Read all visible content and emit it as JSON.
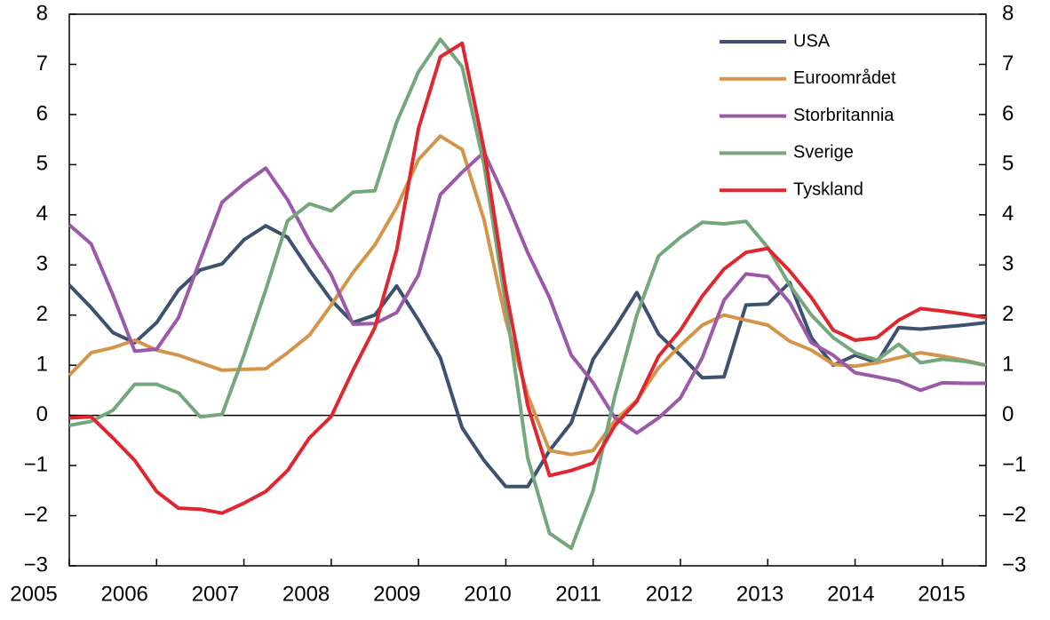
{
  "chart_data": {
    "type": "line",
    "x": [
      2005,
      2005.25,
      2005.5,
      2005.75,
      2006,
      2006.25,
      2006.5,
      2006.75,
      2007,
      2007.25,
      2007.5,
      2007.75,
      2008,
      2008.25,
      2008.5,
      2008.75,
      2009,
      2009.25,
      2009.5,
      2009.75,
      2010,
      2010.25,
      2010.5,
      2010.75,
      2011,
      2011.25,
      2011.5,
      2011.75,
      2012,
      2012.25,
      2012.5,
      2012.75,
      2013,
      2013.25,
      2013.5,
      2013.75,
      2014,
      2014.25,
      2014.5,
      2014.75,
      2015,
      2015.25,
      2015.5
    ],
    "series": [
      {
        "name": "USA",
        "color": "#3d5170",
        "values": [
          2.6,
          2.15,
          1.65,
          1.45,
          1.85,
          2.5,
          2.9,
          3.02,
          3.5,
          3.78,
          3.55,
          2.9,
          2.3,
          1.85,
          2.0,
          2.58,
          1.9,
          1.15,
          -0.25,
          -0.9,
          -1.42,
          -1.42,
          -0.7,
          -0.15,
          1.12,
          1.75,
          2.45,
          1.62,
          1.2,
          0.75,
          0.77,
          2.2,
          2.22,
          2.65,
          1.55,
          1.0,
          1.2,
          1.05,
          1.75,
          1.72,
          1.76,
          1.8,
          1.85
        ]
      },
      {
        "name": "Euroområdet",
        "color": "#d4954a",
        "values": [
          0.8,
          1.25,
          1.35,
          1.5,
          1.3,
          1.2,
          1.05,
          0.9,
          0.92,
          0.93,
          1.25,
          1.6,
          2.2,
          2.85,
          3.4,
          4.15,
          5.1,
          5.57,
          5.3,
          3.9,
          1.9,
          0.4,
          -0.7,
          -0.78,
          -0.7,
          -0.1,
          0.3,
          0.95,
          1.4,
          1.8,
          2.0,
          1.9,
          1.8,
          1.48,
          1.3,
          1.02,
          0.98,
          1.05,
          1.15,
          1.25,
          1.18,
          1.1,
          1.0
        ]
      },
      {
        "name": "Storbritannia",
        "color": "#9b59a8",
        "values": [
          3.8,
          3.42,
          2.4,
          1.28,
          1.32,
          1.95,
          3.1,
          4.25,
          4.62,
          4.93,
          4.3,
          3.48,
          2.8,
          1.82,
          1.83,
          2.05,
          2.8,
          4.4,
          4.85,
          5.25,
          4.3,
          3.25,
          2.35,
          1.2,
          0.65,
          -0.05,
          -0.35,
          -0.05,
          0.35,
          1.15,
          2.3,
          2.82,
          2.77,
          2.25,
          1.45,
          1.2,
          0.85,
          0.77,
          0.68,
          0.5,
          0.65,
          0.64,
          0.64
        ]
      },
      {
        "name": "Sverige",
        "color": "#74a87c",
        "values": [
          -0.2,
          -0.12,
          0.1,
          0.62,
          0.62,
          0.45,
          -0.03,
          0.02,
          1.2,
          2.5,
          3.88,
          4.22,
          4.08,
          4.45,
          4.48,
          5.85,
          6.85,
          7.5,
          6.95,
          5.0,
          2.2,
          -0.85,
          -2.35,
          -2.65,
          -1.5,
          0.4,
          2.0,
          3.18,
          3.55,
          3.85,
          3.82,
          3.87,
          3.35,
          2.6,
          2.0,
          1.55,
          1.25,
          1.1,
          1.42,
          1.05,
          1.12,
          1.08,
          1.0
        ]
      },
      {
        "name": "Tyskland",
        "color": "#e0262e",
        "values": [
          -0.05,
          -0.03,
          -0.45,
          -0.9,
          -1.52,
          -1.85,
          -1.87,
          -1.95,
          -1.75,
          -1.52,
          -1.1,
          -0.45,
          -0.02,
          0.9,
          1.75,
          3.3,
          5.72,
          7.15,
          7.42,
          5.3,
          2.5,
          0.2,
          -1.2,
          -1.1,
          -0.95,
          -0.2,
          0.28,
          1.18,
          1.7,
          2.38,
          2.92,
          3.25,
          3.33,
          2.88,
          2.35,
          1.7,
          1.5,
          1.55,
          1.9,
          2.13,
          2.08,
          2.02,
          1.95
        ]
      }
    ],
    "xlim": [
      2005,
      2015.5
    ],
    "xticks": [
      2005,
      2006,
      2007,
      2008,
      2009,
      2010,
      2011,
      2012,
      2013,
      2014,
      2015
    ],
    "ylim": [
      -3,
      8
    ],
    "yticks": [
      {
        "value": -3,
        "label": "−3"
      },
      {
        "value": -2,
        "label": "−2"
      },
      {
        "value": -1,
        "label": "−1"
      },
      0,
      1,
      2,
      3,
      4,
      5,
      6,
      7,
      8
    ],
    "y2lim": [
      -3,
      8
    ],
    "y2ticks": [
      {
        "value": -3,
        "label": "−3"
      },
      {
        "value": -2,
        "label": "−2"
      },
      {
        "value": -1,
        "label": "−1"
      },
      0,
      1,
      2,
      3,
      4,
      5,
      6,
      7,
      8
    ],
    "legend": "upper right"
  }
}
